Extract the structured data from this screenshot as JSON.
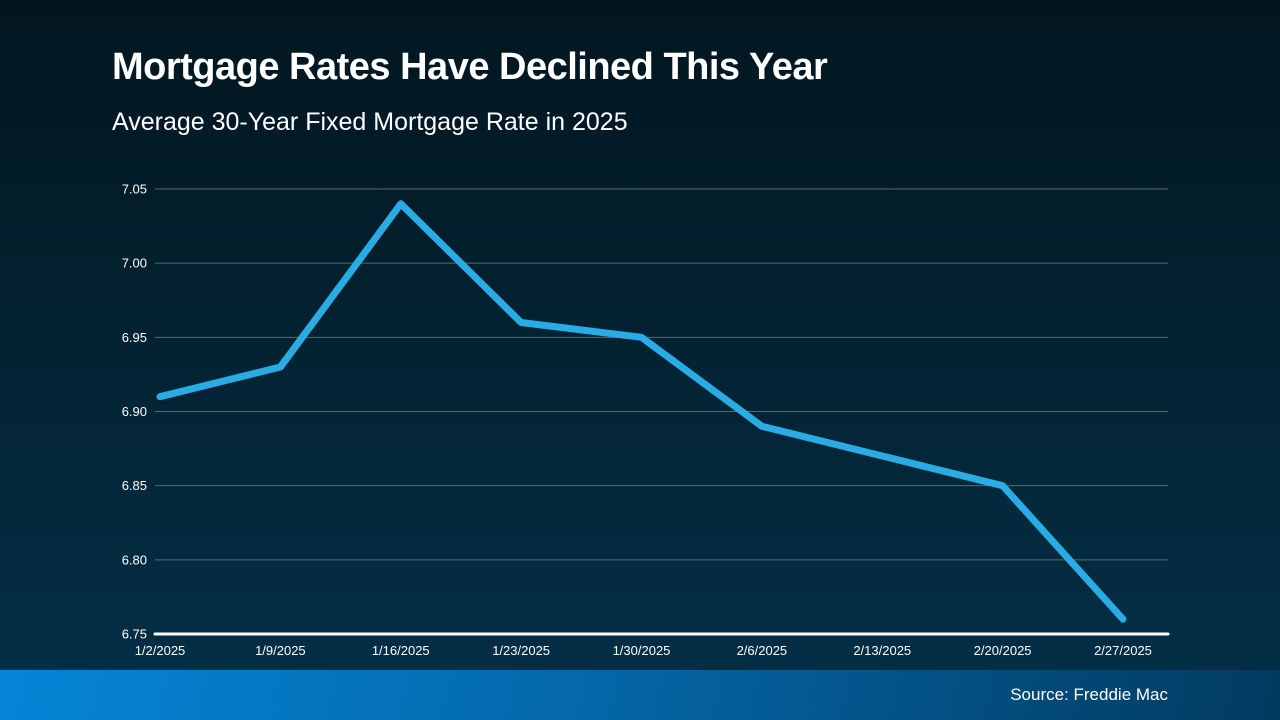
{
  "page": {
    "title": "Mortgage Rates Have Declined This Year",
    "subtitle": "Average 30-Year Fixed Mortgage Rate in 2025"
  },
  "footer": {
    "source_label": "Source: Freddie Mac"
  },
  "colors": {
    "line": "#29ace4",
    "background_top": "#02161f",
    "background_bottom": "#043049",
    "footer_gradient_left": "#0586d8",
    "footer_gradient_right": "#023a5f",
    "gridline": "#9aa4a8",
    "axis_line": "#ffffff",
    "text": "#ffffff"
  },
  "chart_data": {
    "type": "line",
    "title": "Mortgage Rates Have Declined This Year",
    "subtitle": "Average 30-Year Fixed Mortgage Rate in 2025",
    "categories": [
      "1/2/2025",
      "1/9/2025",
      "1/16/2025",
      "1/23/2025",
      "1/30/2025",
      "2/6/2025",
      "2/13/2025",
      "2/20/2025",
      "2/27/2025"
    ],
    "series": [
      {
        "name": "Average 30-Year Fixed Mortgage Rate",
        "values": [
          6.91,
          6.93,
          7.04,
          6.96,
          6.95,
          6.89,
          6.87,
          6.85,
          6.76
        ]
      }
    ],
    "y_ticks": [
      "7.05",
      "7.00",
      "6.95",
      "6.90",
      "6.85",
      "6.80",
      "6.75"
    ],
    "ylim": [
      6.75,
      7.05
    ],
    "xlabel": "",
    "ylabel": "",
    "grid": true,
    "legend": false,
    "source": "Source: Freddie Mac"
  }
}
